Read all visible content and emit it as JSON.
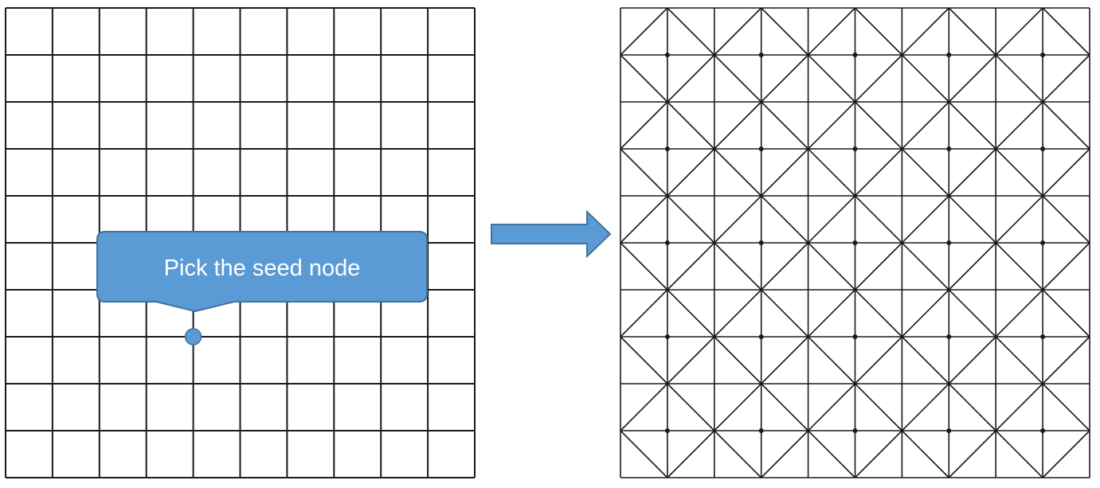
{
  "callout": {
    "text": "Pick the seed node"
  },
  "colors": {
    "grid_line": "#1a1a1a",
    "callout_fill": "#5b9bd5",
    "callout_stroke": "#41719c",
    "callout_text": "#ffffff",
    "arrow_fill": "#5b9bd5",
    "arrow_stroke": "#41719c",
    "seed_node_fill": "#5b9bd5",
    "background": "#ffffff"
  },
  "left_grid": {
    "rows": 10,
    "cols": 10,
    "seed_node": {
      "col": 4,
      "row": 7
    }
  },
  "right_mesh": {
    "rows": 10,
    "cols": 10,
    "pattern": "union-jack triangulation"
  },
  "arrow": {
    "direction": "right"
  }
}
